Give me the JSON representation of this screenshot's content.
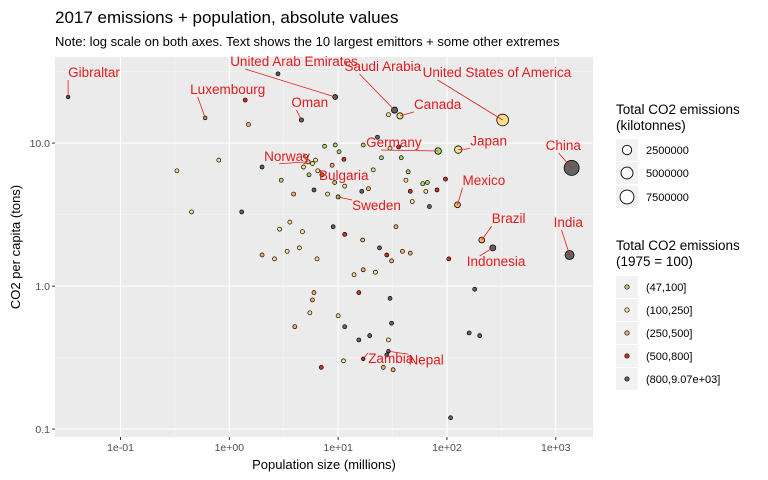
{
  "chart_data": {
    "type": "scatter",
    "title": "2017 emissions + population, absolute values",
    "subtitle": "Note: log scale on both axes. Text shows the 10 largest emittors + some other extremes",
    "xlabel": "Population size (millions)",
    "ylabel": "CO2 per capita (tons)",
    "x_scale": "log10",
    "y_scale": "log10",
    "xlim": [
      0.025,
      2200
    ],
    "ylim": [
      0.088,
      40
    ],
    "x_ticks": [
      {
        "value": 0.1,
        "label": "1e-01"
      },
      {
        "value": 1,
        "label": "1e+00"
      },
      {
        "value": 10,
        "label": "1e+01"
      },
      {
        "value": 100,
        "label": "1e+02"
      },
      {
        "value": 1000,
        "label": "1e+03"
      }
    ],
    "y_ticks": [
      {
        "value": 0.1,
        "label": "0.1"
      },
      {
        "value": 1,
        "label": "1.0"
      },
      {
        "value": 10,
        "label": "10.0"
      }
    ],
    "grid": true,
    "legend_position": "right",
    "size_legend": {
      "title": "Total CO2 emissions\n(kilotonnes)",
      "entries": [
        {
          "label": "2500000",
          "value": 2500000
        },
        {
          "label": "5000000",
          "value": 5000000
        },
        {
          "label": "7500000",
          "value": 7500000
        }
      ]
    },
    "color_legend": {
      "title": "Total CO2 emissions\n(1975 = 100)",
      "entries": [
        {
          "label": "(47,100]",
          "color": "#a6d96a"
        },
        {
          "label": "(100,250]",
          "color": "#fee08b"
        },
        {
          "label": "(250,500]",
          "color": "#fdae61"
        },
        {
          "label": "(500,800]",
          "color": "#d73027"
        },
        {
          "label": "(800,9.07e+03]",
          "color": "#636363"
        }
      ]
    },
    "label_color": "#e31a1c",
    "labeled_points": [
      {
        "name": "Gibraltar",
        "x": 0.033,
        "y": 21.0,
        "bin": 4,
        "kt": 700
      },
      {
        "name": "Luxembourg",
        "x": 0.6,
        "y": 15.0,
        "bin": 0,
        "kt": 9000
      },
      {
        "name": "United Arab Emirates",
        "x": 9.4,
        "y": 21.0,
        "bin": 4,
        "kt": 200000
      },
      {
        "name": "Oman",
        "x": 4.6,
        "y": 14.5,
        "bin": 4,
        "kt": 67000
      },
      {
        "name": "Saudi Arabia",
        "x": 33,
        "y": 17.0,
        "bin": 4,
        "kt": 560000
      },
      {
        "name": "Canada",
        "x": 37,
        "y": 15.5,
        "bin": 1,
        "kt": 570000
      },
      {
        "name": "United States of America",
        "x": 325,
        "y": 14.5,
        "bin": 1,
        "kt": 4700000
      },
      {
        "name": "Germany",
        "x": 83,
        "y": 8.8,
        "bin": 0,
        "kt": 730000
      },
      {
        "name": "Japan",
        "x": 127,
        "y": 9.0,
        "bin": 1,
        "kt": 1140000
      },
      {
        "name": "Norway",
        "x": 5.3,
        "y": 7.4,
        "bin": 1,
        "kt": 40000
      },
      {
        "name": "China",
        "x": 1400,
        "y": 6.7,
        "bin": 4,
        "kt": 9400000
      },
      {
        "name": "Bulgaria",
        "x": 7.1,
        "y": 6.0,
        "bin": 0,
        "kt": 43000
      },
      {
        "name": "Mexico",
        "x": 125,
        "y": 3.7,
        "bin": 2,
        "kt": 460000
      },
      {
        "name": "Sweden",
        "x": 10.0,
        "y": 4.2,
        "bin": 0,
        "kt": 42000
      },
      {
        "name": "Brazil",
        "x": 209,
        "y": 2.1,
        "bin": 2,
        "kt": 440000
      },
      {
        "name": "India",
        "x": 1340,
        "y": 1.65,
        "bin": 4,
        "kt": 2200000
      },
      {
        "name": "Indonesia",
        "x": 264,
        "y": 1.85,
        "bin": 4,
        "kt": 490000
      },
      {
        "name": "Zambia",
        "x": 17,
        "y": 0.31,
        "bin": 3,
        "kt": 5300
      },
      {
        "name": "Nepal",
        "x": 29,
        "y": 0.35,
        "bin": 4,
        "kt": 10000
      }
    ],
    "points": [
      {
        "x": 1.4,
        "y": 20.0,
        "bin": 3
      },
      {
        "x": 2.8,
        "y": 30.5,
        "bin": 4
      },
      {
        "x": 1.5,
        "y": 13.5,
        "bin": 2
      },
      {
        "x": 9.4,
        "y": 9.7,
        "bin": 0
      },
      {
        "x": 7.5,
        "y": 9.5,
        "bin": 0
      },
      {
        "x": 10.2,
        "y": 8.7,
        "bin": 0
      },
      {
        "x": 5.0,
        "y": 8.1,
        "bin": 1
      },
      {
        "x": 6.2,
        "y": 7.6,
        "bin": 1
      },
      {
        "x": 5.8,
        "y": 7.2,
        "bin": 1
      },
      {
        "x": 4.8,
        "y": 6.8,
        "bin": 1
      },
      {
        "x": 6.5,
        "y": 6.4,
        "bin": 1
      },
      {
        "x": 5.4,
        "y": 6.0,
        "bin": 0
      },
      {
        "x": 8.8,
        "y": 7.0,
        "bin": 2
      },
      {
        "x": 11.3,
        "y": 7.7,
        "bin": 3
      },
      {
        "x": 2.0,
        "y": 6.8,
        "bin": 4
      },
      {
        "x": 0.33,
        "y": 6.4,
        "bin": 1
      },
      {
        "x": 0.8,
        "y": 7.6,
        "bin": 1
      },
      {
        "x": 0.45,
        "y": 3.3,
        "bin": 1
      },
      {
        "x": 1.3,
        "y": 3.3,
        "bin": 4
      },
      {
        "x": 3.0,
        "y": 5.5,
        "bin": 0
      },
      {
        "x": 3.9,
        "y": 4.4,
        "bin": 2
      },
      {
        "x": 6.0,
        "y": 4.7,
        "bin": 4
      },
      {
        "x": 8.0,
        "y": 4.4,
        "bin": 1
      },
      {
        "x": 9.3,
        "y": 5.3,
        "bin": 2
      },
      {
        "x": 11.5,
        "y": 5.0,
        "bin": 1
      },
      {
        "x": 16.5,
        "y": 4.6,
        "bin": 4
      },
      {
        "x": 19,
        "y": 4.8,
        "bin": 2
      },
      {
        "x": 21,
        "y": 6.5,
        "bin": 1
      },
      {
        "x": 25,
        "y": 7.9,
        "bin": 0
      },
      {
        "x": 30,
        "y": 9.2,
        "bin": 1
      },
      {
        "x": 36,
        "y": 9.4,
        "bin": 3
      },
      {
        "x": 38,
        "y": 7.9,
        "bin": 0
      },
      {
        "x": 44,
        "y": 6.3,
        "bin": 0
      },
      {
        "x": 42,
        "y": 5.5,
        "bin": 1
      },
      {
        "x": 46,
        "y": 4.6,
        "bin": 3
      },
      {
        "x": 48,
        "y": 3.9,
        "bin": 1
      },
      {
        "x": 60,
        "y": 5.2,
        "bin": 0
      },
      {
        "x": 66,
        "y": 5.3,
        "bin": 0
      },
      {
        "x": 64,
        "y": 4.6,
        "bin": 1
      },
      {
        "x": 69,
        "y": 3.6,
        "bin": 4
      },
      {
        "x": 81,
        "y": 4.7,
        "bin": 3
      },
      {
        "x": 97,
        "y": 5.6,
        "bin": 3
      },
      {
        "x": 17,
        "y": 9.7,
        "bin": 0
      },
      {
        "x": 23,
        "y": 11.0,
        "bin": 4
      },
      {
        "x": 29,
        "y": 15.8,
        "bin": 1
      },
      {
        "x": 2.9,
        "y": 2.5,
        "bin": 1
      },
      {
        "x": 3.6,
        "y": 2.8,
        "bin": 1
      },
      {
        "x": 4.7,
        "y": 2.4,
        "bin": 1
      },
      {
        "x": 2.0,
        "y": 1.65,
        "bin": 2
      },
      {
        "x": 2.6,
        "y": 1.55,
        "bin": 1
      },
      {
        "x": 3.4,
        "y": 1.75,
        "bin": 1
      },
      {
        "x": 4.4,
        "y": 1.85,
        "bin": 1
      },
      {
        "x": 6.4,
        "y": 1.55,
        "bin": 1
      },
      {
        "x": 9.0,
        "y": 2.6,
        "bin": 4
      },
      {
        "x": 11.5,
        "y": 2.3,
        "bin": 3
      },
      {
        "x": 16.8,
        "y": 2.1,
        "bin": 2
      },
      {
        "x": 24,
        "y": 1.85,
        "bin": 4
      },
      {
        "x": 28,
        "y": 1.65,
        "bin": 3
      },
      {
        "x": 31,
        "y": 1.5,
        "bin": 2
      },
      {
        "x": 39,
        "y": 1.75,
        "bin": 2
      },
      {
        "x": 46,
        "y": 1.7,
        "bin": 2
      },
      {
        "x": 34,
        "y": 2.6,
        "bin": 2
      },
      {
        "x": 104,
        "y": 1.55,
        "bin": 3
      },
      {
        "x": 180,
        "y": 0.95,
        "bin": 4
      },
      {
        "x": 14,
        "y": 1.2,
        "bin": 1
      },
      {
        "x": 17,
        "y": 1.3,
        "bin": 2
      },
      {
        "x": 22,
        "y": 1.25,
        "bin": 1
      },
      {
        "x": 6.0,
        "y": 0.9,
        "bin": 2
      },
      {
        "x": 5.8,
        "y": 0.8,
        "bin": 2
      },
      {
        "x": 15.5,
        "y": 0.9,
        "bin": 3
      },
      {
        "x": 30,
        "y": 0.82,
        "bin": 4
      },
      {
        "x": 5.5,
        "y": 0.65,
        "bin": 1
      },
      {
        "x": 10,
        "y": 0.62,
        "bin": 1
      },
      {
        "x": 4.0,
        "y": 0.52,
        "bin": 2
      },
      {
        "x": 11.5,
        "y": 0.52,
        "bin": 4
      },
      {
        "x": 31,
        "y": 0.55,
        "bin": 4
      },
      {
        "x": 19.5,
        "y": 0.45,
        "bin": 4
      },
      {
        "x": 15.5,
        "y": 0.42,
        "bin": 4
      },
      {
        "x": 29,
        "y": 0.42,
        "bin": 1
      },
      {
        "x": 160,
        "y": 0.47,
        "bin": 4
      },
      {
        "x": 200,
        "y": 0.45,
        "bin": 4
      },
      {
        "x": 11.2,
        "y": 0.3,
        "bin": 1
      },
      {
        "x": 26,
        "y": 0.27,
        "bin": 2
      },
      {
        "x": 32,
        "y": 0.26,
        "bin": 2
      },
      {
        "x": 7.0,
        "y": 0.27,
        "bin": 3
      },
      {
        "x": 28,
        "y": 0.33,
        "bin": 4
      },
      {
        "x": 108,
        "y": 0.12,
        "bin": 4
      }
    ]
  }
}
